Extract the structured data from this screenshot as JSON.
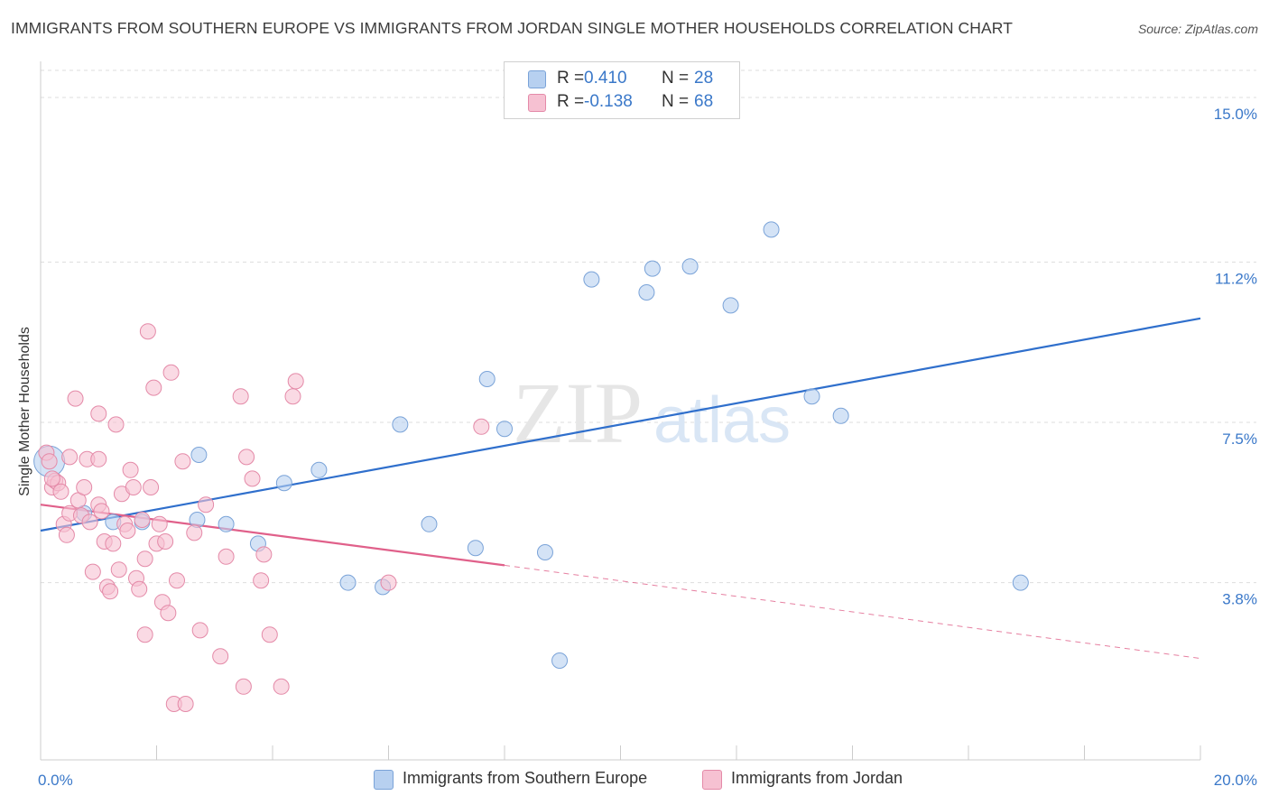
{
  "title": "IMMIGRANTS FROM SOUTHERN EUROPE VS IMMIGRANTS FROM JORDAN SINGLE MOTHER HOUSEHOLDS CORRELATION CHART",
  "source": "Source: ZipAtlas.com",
  "watermark": {
    "zip": "ZIP",
    "atlas": "atlas"
  },
  "colors": {
    "blue_fill": "#b7d0f0",
    "blue_stroke": "#7aa3d8",
    "blue_line": "#2f6fcc",
    "pink_fill": "#f6c1d2",
    "pink_stroke": "#e48aa8",
    "pink_line": "#e0608a",
    "axis_text": "#3a78c9",
    "grid": "#dddddd"
  },
  "legend": {
    "rows": [
      {
        "r_label": "R =",
        "r_value": "0.410",
        "n_label": "N =",
        "n_value": "28"
      },
      {
        "r_label": "R =",
        "r_value": "-0.138",
        "n_label": "N =",
        "n_value": "68"
      }
    ]
  },
  "bottom_legend": {
    "blue": "Immigrants from Southern Europe",
    "pink": "Immigrants from Jordan"
  },
  "chart_data": {
    "type": "scatter",
    "title": "IMMIGRANTS FROM SOUTHERN EUROPE VS IMMIGRANTS FROM JORDAN SINGLE MOTHER HOUSEHOLDS CORRELATION CHART",
    "xlabel": "",
    "ylabel": "Single Mother Households",
    "xlim": [
      0,
      20
    ],
    "ylim": [
      0,
      15.75
    ],
    "x_tick_labels": [
      "0.0%",
      "20.0%"
    ],
    "y_ticks": [
      3.8,
      7.5,
      11.2,
      15.0
    ],
    "y_tick_labels": [
      "3.8%",
      "7.5%",
      "11.2%",
      "15.0%"
    ],
    "grid": true,
    "series": [
      {
        "name": "Immigrants from Southern Europe",
        "color": "blue",
        "points": [
          [
            0.15,
            6.6
          ],
          [
            0.75,
            5.4
          ],
          [
            1.25,
            5.2
          ],
          [
            1.75,
            5.2
          ],
          [
            2.7,
            5.25
          ],
          [
            2.73,
            6.75
          ],
          [
            3.2,
            5.15
          ],
          [
            3.75,
            4.7
          ],
          [
            4.2,
            6.1
          ],
          [
            4.8,
            6.4
          ],
          [
            5.3,
            3.8
          ],
          [
            5.9,
            3.7
          ],
          [
            6.2,
            7.45
          ],
          [
            6.7,
            5.15
          ],
          [
            7.5,
            4.6
          ],
          [
            7.7,
            8.5
          ],
          [
            8.0,
            7.35
          ],
          [
            8.7,
            4.5
          ],
          [
            8.95,
            2.0
          ],
          [
            9.5,
            10.8
          ],
          [
            10.45,
            10.5
          ],
          [
            10.55,
            11.05
          ],
          [
            11.2,
            11.1
          ],
          [
            11.9,
            10.2
          ],
          [
            12.6,
            11.95
          ],
          [
            13.3,
            8.1
          ],
          [
            13.8,
            7.65
          ],
          [
            16.9,
            3.8
          ]
        ]
      },
      {
        "name": "Immigrants from Jordan",
        "color": "pink",
        "points": [
          [
            0.1,
            6.8
          ],
          [
            0.15,
            6.6
          ],
          [
            0.2,
            6.0
          ],
          [
            0.25,
            6.15
          ],
          [
            0.3,
            6.1
          ],
          [
            0.35,
            5.9
          ],
          [
            0.4,
            5.15
          ],
          [
            0.45,
            4.9
          ],
          [
            0.5,
            5.4
          ],
          [
            0.5,
            6.7
          ],
          [
            0.6,
            8.05
          ],
          [
            0.65,
            5.7
          ],
          [
            0.7,
            5.35
          ],
          [
            0.75,
            6.0
          ],
          [
            0.8,
            6.65
          ],
          [
            0.85,
            5.2
          ],
          [
            0.9,
            4.05
          ],
          [
            1.0,
            5.6
          ],
          [
            1.0,
            6.65
          ],
          [
            1.0,
            7.7
          ],
          [
            1.05,
            5.45
          ],
          [
            1.1,
            4.75
          ],
          [
            1.15,
            3.7
          ],
          [
            1.2,
            3.6
          ],
          [
            1.25,
            4.7
          ],
          [
            1.3,
            7.45
          ],
          [
            1.35,
            4.1
          ],
          [
            1.4,
            5.85
          ],
          [
            1.45,
            5.15
          ],
          [
            1.5,
            5.0
          ],
          [
            1.55,
            6.4
          ],
          [
            1.6,
            6.0
          ],
          [
            1.65,
            3.9
          ],
          [
            1.7,
            3.65
          ],
          [
            1.75,
            5.25
          ],
          [
            1.8,
            2.6
          ],
          [
            1.8,
            4.35
          ],
          [
            1.85,
            9.6
          ],
          [
            1.9,
            6.0
          ],
          [
            1.95,
            8.3
          ],
          [
            2.0,
            4.7
          ],
          [
            2.05,
            5.15
          ],
          [
            2.1,
            3.35
          ],
          [
            2.15,
            4.75
          ],
          [
            2.2,
            3.1
          ],
          [
            2.25,
            8.65
          ],
          [
            2.3,
            1.0
          ],
          [
            2.35,
            3.85
          ],
          [
            2.45,
            6.6
          ],
          [
            2.5,
            1.0
          ],
          [
            2.65,
            4.95
          ],
          [
            2.75,
            2.7
          ],
          [
            2.85,
            5.6
          ],
          [
            3.1,
            2.1
          ],
          [
            3.2,
            4.4
          ],
          [
            3.45,
            8.1
          ],
          [
            3.5,
            1.4
          ],
          [
            3.55,
            6.7
          ],
          [
            3.65,
            6.2
          ],
          [
            3.8,
            3.85
          ],
          [
            3.85,
            4.45
          ],
          [
            3.95,
            2.6
          ],
          [
            4.15,
            1.4
          ],
          [
            4.35,
            8.1
          ],
          [
            4.4,
            8.45
          ],
          [
            6.0,
            3.8
          ],
          [
            7.6,
            7.4
          ],
          [
            0.2,
            6.2
          ]
        ]
      }
    ],
    "trend_lines": [
      {
        "series": "Immigrants from Southern Europe",
        "x": [
          0,
          20
        ],
        "y": [
          5.0,
          9.9
        ],
        "style": "solid"
      },
      {
        "series": "Immigrants from Jordan",
        "x": [
          0,
          8.0
        ],
        "y": [
          5.6,
          4.2
        ],
        "style": "solid"
      },
      {
        "series": "Immigrants from Jordan",
        "x": [
          8.0,
          20
        ],
        "y": [
          4.2,
          2.05
        ],
        "style": "dashed"
      }
    ]
  }
}
